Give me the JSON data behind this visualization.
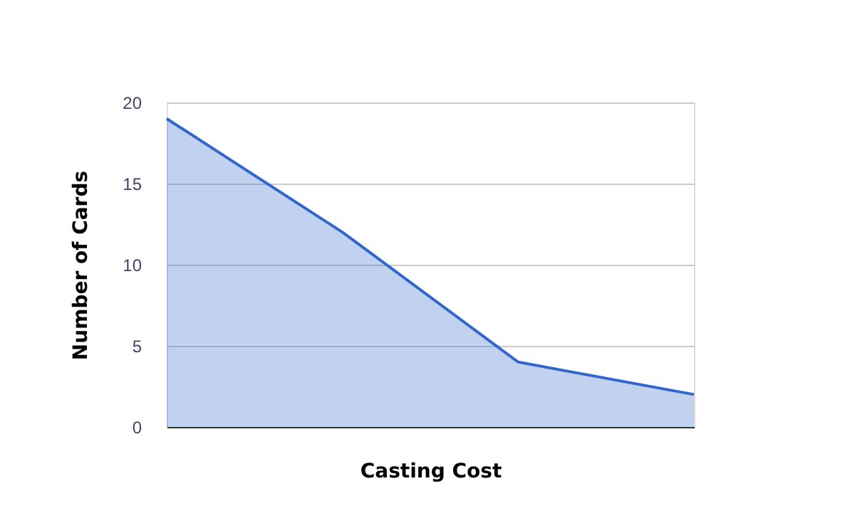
{
  "chart_data": {
    "type": "area",
    "xlabel": "Casting Cost",
    "ylabel": "Number of Cards",
    "categories": [
      null,
      null,
      null,
      null
    ],
    "series": [
      {
        "color": "#3366cc",
        "values": [
          19,
          12,
          4,
          2
        ]
      }
    ],
    "ylim": [
      0,
      20
    ],
    "yticks": [
      0,
      5,
      10,
      15,
      20
    ],
    "grid": "y",
    "tick_labels": "y"
  }
}
